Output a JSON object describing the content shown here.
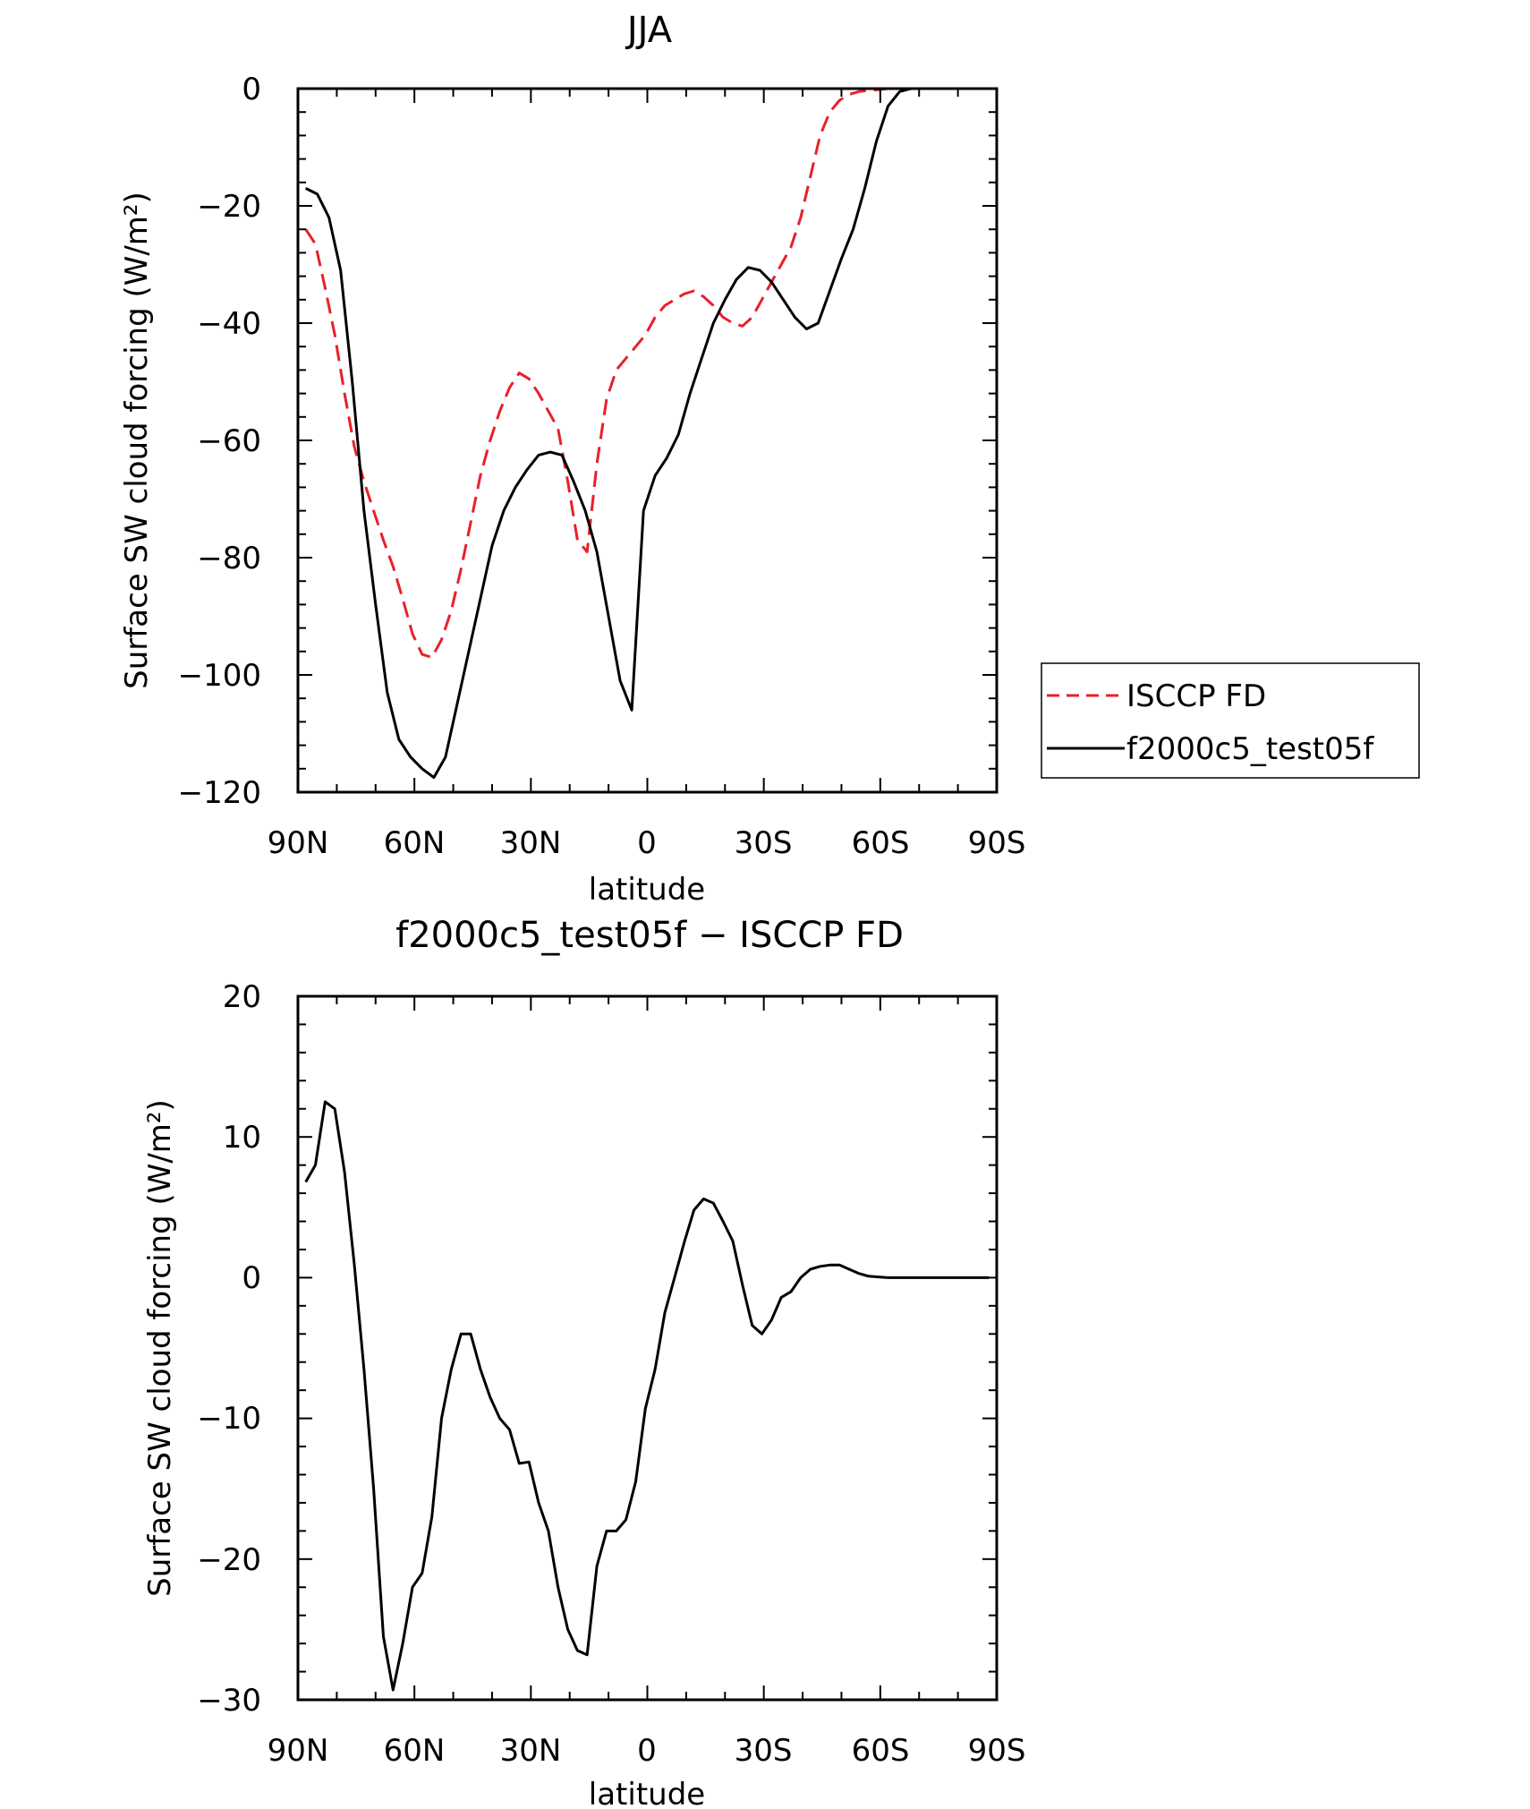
{
  "chart_data": [
    {
      "type": "line",
      "title": "JJA",
      "xlabel": "latitude",
      "ylabel": "Surface SW cloud forcing (W/m²)",
      "xlim": [
        90,
        -90
      ],
      "ylim": [
        -120,
        0
      ],
      "x_ticks": [
        90,
        60,
        30,
        0,
        -30,
        -60,
        -90
      ],
      "x_tick_labels": [
        "90N",
        "60N",
        "30N",
        "0",
        "30S",
        "60S",
        "90S"
      ],
      "y_ticks": [
        0,
        -20,
        -40,
        -60,
        -80,
        -100,
        -120
      ],
      "y_tick_labels": [
        "0",
        "−20",
        "−40",
        "−60",
        "−80",
        "−100",
        "−120"
      ],
      "legend": "right",
      "series": [
        {
          "name": "ISCCP FD",
          "color": "#e8202a",
          "dash": "dashed",
          "x": [
            88,
            85.5,
            83,
            80.5,
            78,
            75.5,
            73,
            70.5,
            68,
            65.5,
            63,
            60.5,
            58,
            55.5,
            53,
            50.5,
            48,
            45.5,
            43,
            40.5,
            38,
            35.5,
            33,
            30.5,
            28,
            25.5,
            23,
            20.5,
            18,
            15.5,
            13,
            10.5,
            8,
            5.5,
            3,
            0.5,
            -2,
            -4.5,
            -7,
            -9.5,
            -12,
            -14.5,
            -17,
            -19.5,
            -22,
            -24.5,
            -27,
            -29.5,
            -32,
            -34.5,
            -37,
            -39.5,
            -42,
            -44.5,
            -47,
            -49.5,
            -52,
            -54.5,
            -57,
            -59.5,
            -62,
            -64.5,
            -67,
            -69.5,
            -72,
            -74.5,
            -77,
            -79.5,
            -82,
            -84.5,
            -87,
            -88
          ],
          "values": [
            -24,
            -26.5,
            -34,
            -42,
            -52,
            -61,
            -67,
            -72,
            -77,
            -81.5,
            -87,
            -93,
            -96.5,
            -97,
            -94,
            -89,
            -82,
            -74,
            -66,
            -60,
            -55,
            -51,
            -48.5,
            -49.5,
            -52,
            -55,
            -58,
            -67,
            -77,
            -79,
            -64,
            -53,
            -48,
            -46,
            -44,
            -42,
            -39,
            -37,
            -36,
            -35,
            -34.5,
            -35.5,
            -37,
            -39,
            -40,
            -40.5,
            -39,
            -36,
            -33,
            -30,
            -27,
            -22,
            -15,
            -8,
            -4,
            -2,
            -1,
            -0.5,
            -0.3,
            -0.2,
            0,
            0,
            0,
            0,
            0,
            0,
            0,
            0,
            0,
            0,
            0,
            0
          ]
        },
        {
          "name": "f2000c5_test05f",
          "color": "#000000",
          "dash": "solid",
          "x": [
            88,
            85,
            82,
            79,
            76,
            73,
            70,
            67,
            64,
            61,
            58,
            55,
            52,
            49,
            46,
            43,
            40,
            37,
            34,
            31,
            28,
            25,
            22,
            19,
            16,
            13,
            10,
            7,
            4,
            1,
            -2,
            -5,
            -8,
            -11,
            -14,
            -17,
            -20,
            -23,
            -26,
            -29,
            -32,
            -35,
            -38,
            -41,
            -44,
            -47,
            -50,
            -53,
            -56,
            -59,
            -62,
            -65,
            -68,
            -71,
            -74,
            -77,
            -80,
            -83,
            -86,
            -88
          ],
          "values": [
            -17,
            -18,
            -22,
            -31,
            -50,
            -72,
            -88,
            -103,
            -111,
            -114,
            -116,
            -117.5,
            -114,
            -105,
            -96,
            -87,
            -78,
            -72,
            -68,
            -65,
            -62.5,
            -62,
            -62.5,
            -67,
            -72,
            -79,
            -90,
            -101,
            -106,
            -72,
            -66,
            -63,
            -59,
            -52,
            -46,
            -40,
            -36,
            -32.5,
            -30.5,
            -31,
            -33,
            -36,
            -39,
            -41,
            -40,
            -34.5,
            -29,
            -24,
            -17,
            -9,
            -3,
            -0.5,
            0,
            0,
            0,
            0,
            0,
            0,
            0,
            0
          ]
        }
      ]
    },
    {
      "type": "line",
      "title": "f2000c5_test05f − ISCCP FD",
      "xlabel": "latitude",
      "ylabel": "Surface SW cloud forcing (W/m²)",
      "xlim": [
        90,
        -90
      ],
      "ylim": [
        -30,
        20
      ],
      "x_ticks": [
        90,
        60,
        30,
        0,
        -30,
        -60,
        -90
      ],
      "x_tick_labels": [
        "90N",
        "60N",
        "30N",
        "0",
        "30S",
        "60S",
        "90S"
      ],
      "y_ticks": [
        20,
        10,
        0,
        -10,
        -20,
        -30
      ],
      "y_tick_labels": [
        "20",
        "10",
        "0",
        "−10",
        "−20",
        "−30"
      ],
      "series": [
        {
          "name": "f2000c5_test05f − ISCCP FD",
          "color": "#000000",
          "dash": "solid",
          "x": [
            88,
            85.5,
            83,
            80.5,
            78,
            75.5,
            73,
            70.5,
            68,
            65.5,
            63,
            60.5,
            58,
            55.5,
            53,
            50.5,
            48,
            45.5,
            43,
            40.5,
            38,
            35.5,
            33,
            30.5,
            28,
            25.5,
            23,
            20.5,
            18,
            15.5,
            13,
            10.5,
            8,
            5.5,
            3,
            0.5,
            -2,
            -4.5,
            -7,
            -9.5,
            -12,
            -14.5,
            -17,
            -19.5,
            -22,
            -24.5,
            -27,
            -29.5,
            -32,
            -34.5,
            -37,
            -39.5,
            -42,
            -44.5,
            -47,
            -49.5,
            -52,
            -54.5,
            -57,
            -59.5,
            -62,
            -64.5,
            -67,
            -69.5,
            -72,
            -74.5,
            -77,
            -79.5,
            -82,
            -84.5,
            -87,
            -88
          ],
          "values": [
            6.8,
            8,
            12.5,
            12,
            7.5,
            1,
            -6.5,
            -15,
            -25.5,
            -29.3,
            -26,
            -22,
            -21,
            -17,
            -10,
            -6.5,
            -4,
            -4,
            -6.5,
            -8.5,
            -10,
            -10.8,
            -13.2,
            -13.1,
            -16,
            -18,
            -22,
            -25,
            -26.5,
            -26.8,
            -20.5,
            -18,
            -18,
            -17.2,
            -14.5,
            -9.3,
            -6.5,
            -2.5,
            0,
            2.5,
            4.8,
            5.6,
            5.3,
            4,
            2.6,
            -0.5,
            -3.4,
            -4,
            -3,
            -1.4,
            -1,
            0,
            0.6,
            0.8,
            0.9,
            0.9,
            0.6,
            0.3,
            0.1,
            0.05,
            0,
            0,
            0,
            0,
            0,
            0,
            0,
            0,
            0,
            0,
            0,
            0
          ]
        }
      ]
    }
  ]
}
